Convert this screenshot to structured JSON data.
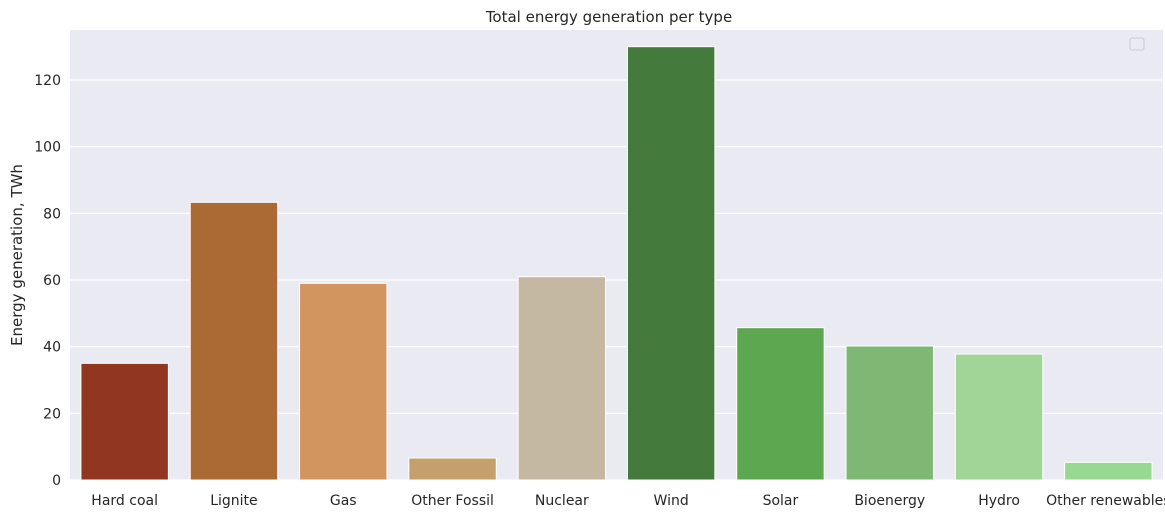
{
  "chart_data": {
    "type": "bar",
    "title": "Total energy generation per type",
    "xlabel": "",
    "ylabel": "Energy generation, TWh",
    "categories": [
      "Hard coal",
      "Lignite",
      "Gas",
      "Other Fossil",
      "Nuclear",
      "Wind",
      "Solar",
      "Bioenergy",
      "Hydro",
      "Other renewables"
    ],
    "values": [
      35,
      83.3,
      59,
      6.6,
      61,
      130,
      45.7,
      40.2,
      37.8,
      5.3
    ],
    "colors": [
      "#913620",
      "#ab6934",
      "#d3955f",
      "#c4a06c",
      "#c5b8a3",
      "#447b3d",
      "#5ca74f",
      "#7eb874",
      "#a0d597",
      "#99d891"
    ],
    "ylim": [
      0,
      135
    ],
    "yticks": [
      0,
      20,
      40,
      60,
      80,
      100,
      120
    ],
    "grid": true,
    "legend": "top-right (empty)",
    "background": "#eaeaf2"
  }
}
